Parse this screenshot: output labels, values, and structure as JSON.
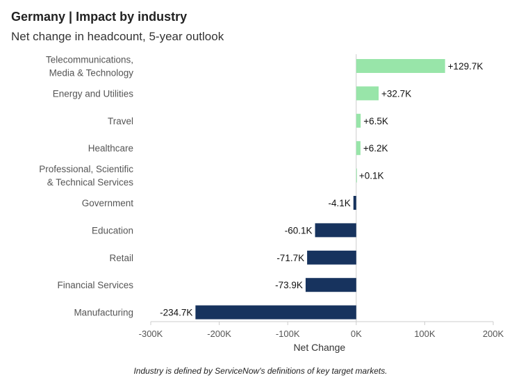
{
  "header": {
    "title": "Germany | Impact by industry",
    "subtitle": "Net change in headcount, 5-year outlook"
  },
  "footnote": "Industry is defined by ServiceNow's definitions of key target markets.",
  "chart_data": {
    "type": "bar",
    "orientation": "horizontal",
    "title": "Germany | Impact by industry",
    "subtitle": "Net change in headcount, 5-year outlook",
    "xlabel": "Net Change",
    "ylabel": "",
    "xlim": [
      -300000,
      200000
    ],
    "ticks": [
      -300000,
      -200000,
      -100000,
      0,
      100000,
      200000
    ],
    "tick_labels": [
      "-300K",
      "-200K",
      "-100K",
      "0K",
      "100K",
      "200K"
    ],
    "categories": [
      [
        "Telecommunications,",
        "Media & Technology"
      ],
      [
        "Energy and Utilities"
      ],
      [
        "Travel"
      ],
      [
        "Healthcare"
      ],
      [
        "Professional, Scientific",
        "& Technical Services"
      ],
      [
        "Government"
      ],
      [
        "Education"
      ],
      [
        "Retail"
      ],
      [
        "Financial Services"
      ],
      [
        "Manufacturing"
      ]
    ],
    "values": [
      129700,
      32700,
      6500,
      6200,
      100,
      -4100,
      -60100,
      -71700,
      -73900,
      -234700
    ],
    "value_labels": [
      "+129.7K",
      "+32.7K",
      "+6.5K",
      "+6.2K",
      "+0.1K",
      "-4.1K",
      "-60.1K",
      "-71.7K",
      "-73.9K",
      "-234.7K"
    ],
    "colors": {
      "positive": "#98e5a9",
      "negative": "#17335e",
      "axis": "#cccccc"
    }
  }
}
